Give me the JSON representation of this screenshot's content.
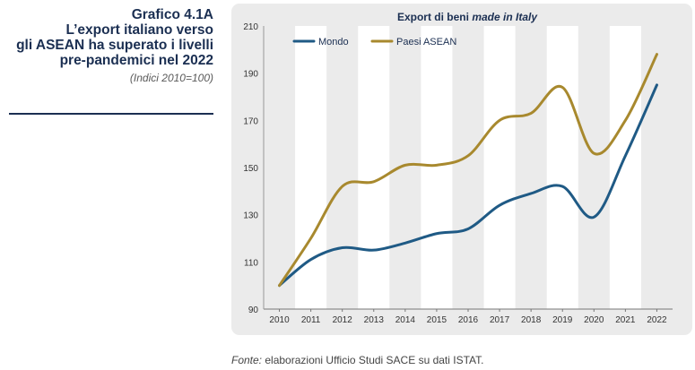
{
  "sidebar": {
    "title_lines": [
      "Grafico 4.1A",
      "L’export italiano verso",
      "gli ASEAN ha superato i livelli",
      "pre-pandemici nel 2022"
    ],
    "subtitle": "(Indici 2010=100)"
  },
  "footer": {
    "source_label": "Fonte:",
    "source_text": " elaborazioni Ufficio Studi SACE su dati ISTAT."
  },
  "colors": {
    "mondo": "#1f5a85",
    "asean": "#a8892e",
    "band": "#ffffff",
    "panel": "#ebebeb"
  },
  "chart_data": {
    "type": "line",
    "title_plain": "Export di beni ",
    "title_italic": "made in Italy",
    "categories": [
      "2010",
      "2011",
      "2012",
      "2013",
      "2014",
      "2015",
      "2016",
      "2017",
      "2018",
      "2019",
      "2020",
      "2021",
      "2022"
    ],
    "series": [
      {
        "name": "Mondo",
        "color": "#1f5a85",
        "values": [
          100,
          111,
          116,
          115,
          118,
          122,
          124,
          134,
          139,
          142,
          129,
          155,
          185
        ]
      },
      {
        "name": "Paesi ASEAN",
        "color": "#a8892e",
        "values": [
          100,
          120,
          142,
          144,
          151,
          151,
          155,
          170,
          173,
          184,
          156,
          170,
          198
        ]
      }
    ],
    "ylim": [
      90,
      210
    ],
    "yticks": [
      90,
      110,
      130,
      150,
      170,
      190,
      210
    ],
    "grid": false,
    "legend_position": "top-left"
  }
}
